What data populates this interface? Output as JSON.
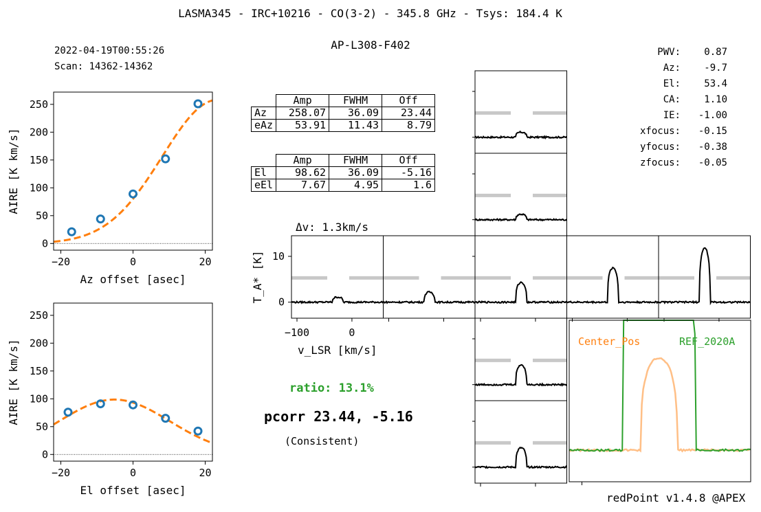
{
  "title": "LASMA345 - IRC+10216 - CO(3-2) - 345.8 GHz - Tsys: 184.4 K",
  "subtitle": "AP-L308-F402",
  "timestamp": "2022-04-19T00:55:26",
  "scan": "Scan: 14362-14362",
  "params": [
    {
      "label": "PWV:",
      "value": "0.87"
    },
    {
      "label": "Az:",
      "value": "-9.7"
    },
    {
      "label": "El:",
      "value": "53.4"
    },
    {
      "label": "CA:",
      "value": "1.10"
    },
    {
      "label": "IE:",
      "value": "-1.00"
    },
    {
      "label": "xfocus:",
      "value": "-0.15"
    },
    {
      "label": "yfocus:",
      "value": "-0.38"
    },
    {
      "label": "zfocus:",
      "value": "-0.05"
    }
  ],
  "az_table": {
    "headers": [
      "Amp",
      "FWHM",
      "Off"
    ],
    "rows": [
      {
        "label": "Az",
        "values": [
          "258.07",
          "36.09",
          "23.44"
        ]
      },
      {
        "label": "eAz",
        "values": [
          "53.91",
          "11.43",
          "8.79"
        ]
      }
    ]
  },
  "el_table": {
    "headers": [
      "Amp",
      "FWHM",
      "Off"
    ],
    "rows": [
      {
        "label": "El",
        "values": [
          "98.62",
          "36.09",
          "-5.16"
        ]
      },
      {
        "label": "eEl",
        "values": [
          "7.67",
          "4.95",
          "1.6"
        ]
      }
    ]
  },
  "dv_label": "Δv: 1.3km/s",
  "ratio": "ratio: 13.1%",
  "pcorr": "pcorr 23.44, -5.16",
  "consistent": "(Consistent)",
  "footer": "redPoint v1.4.8 @APEX",
  "colors": {
    "data": "#1f77b4",
    "fit": "#ff7f0e",
    "ref": "#2ca02c",
    "ratio": "#2ca02c",
    "grey": "#c8c8c8",
    "spectrum": "#000000"
  },
  "chart_data": [
    {
      "type": "scatter",
      "name": "az-scan",
      "xlabel": "Az offset [asec]",
      "ylabel": "AIRE [K km/s]",
      "xlim": [
        -22,
        22
      ],
      "ylim": [
        -12,
        272
      ],
      "xticks": [
        -20,
        0,
        20
      ],
      "yticks": [
        0,
        50,
        100,
        150,
        200,
        250
      ],
      "points": {
        "x": [
          -17,
          -9,
          0,
          9,
          18
        ],
        "y": [
          21,
          44,
          89,
          152,
          251
        ]
      },
      "fit": {
        "amp": 258.07,
        "fwhm": 36.09,
        "offset": 23.44
      }
    },
    {
      "type": "scatter",
      "name": "el-scan",
      "xlabel": "El offset [asec]",
      "ylabel": "AIRE [K km/s]",
      "xlim": [
        -22,
        22
      ],
      "ylim": [
        -12,
        272
      ],
      "xticks": [
        -20,
        0,
        20
      ],
      "yticks": [
        0,
        50,
        100,
        150,
        200,
        250
      ],
      "points": {
        "x": [
          -18,
          -9,
          0,
          9,
          18
        ],
        "y": [
          76,
          91,
          89,
          65,
          42
        ]
      },
      "fit": {
        "amp": 98.62,
        "fwhm": 36.09,
        "offset": -5.16
      }
    },
    {
      "type": "line",
      "name": "spectra-grid",
      "xlabel": "v_LSR [km/s]",
      "ylabel": "T_A* [K]",
      "xlim": [
        -110,
        57
      ],
      "ylim": [
        -3.5,
        14.5
      ],
      "xticks": [
        -100,
        0
      ],
      "yticks": [
        0,
        10
      ],
      "line_center_kms": -26,
      "line_fwhm_kms": 18,
      "grey_band_level_K": 5.3,
      "panels": [
        {
          "pos": "N2",
          "peak": 1.1
        },
        {
          "pos": "N1",
          "peak": 1.2
        },
        {
          "pos": "W2",
          "peak": 1.1
        },
        {
          "pos": "W1",
          "peak": 2.2
        },
        {
          "pos": "C",
          "peak": 4.3
        },
        {
          "pos": "E1",
          "peak": 7.5
        },
        {
          "pos": "E2",
          "peak": 11.8
        },
        {
          "pos": "S1",
          "peak": 4.3
        },
        {
          "pos": "S2",
          "peak": 4.2
        }
      ]
    },
    {
      "type": "line",
      "name": "center-vs-reference",
      "series": [
        {
          "name": "Center_Pos",
          "color": "#ff7f0e",
          "peak": 1.0
        },
        {
          "name": "REF_2020A",
          "color": "#2ca02c",
          "peak": 7.6
        }
      ]
    }
  ]
}
